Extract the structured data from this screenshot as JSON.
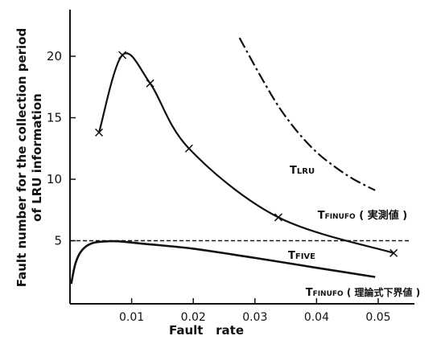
{
  "chart_data": {
    "type": "line",
    "xlabel": "Fault   rate",
    "ylabel_line1": "Fault number for the collection period",
    "ylabel_line2": "of LRU information",
    "xlim": [
      0,
      0.055
    ],
    "ylim": [
      0,
      23
    ],
    "x_ticks": [
      {
        "value": 0.01,
        "label": "0.01"
      },
      {
        "value": 0.02,
        "label": "0.02"
      },
      {
        "value": 0.03,
        "label": "0.03"
      },
      {
        "value": 0.04,
        "label": "0.04"
      },
      {
        "value": 0.05,
        "label": "0.05"
      }
    ],
    "y_ticks": [
      {
        "value": 5,
        "label": "5"
      },
      {
        "value": 10,
        "label": "10"
      },
      {
        "value": 15,
        "label": "15"
      },
      {
        "value": 20,
        "label": "20"
      }
    ],
    "series": [
      {
        "name": "TLRU",
        "style": "dashdot",
        "markers": false,
        "points": [
          [
            0.0275,
            21.5
          ],
          [
            0.031,
            18.3
          ],
          [
            0.034,
            15.8
          ],
          [
            0.037,
            13.8
          ],
          [
            0.04,
            12.2
          ],
          [
            0.043,
            11.0
          ],
          [
            0.046,
            10.0
          ],
          [
            0.0495,
            9.1
          ]
        ]
      },
      {
        "name": "TFINUFO (実測値)",
        "style": "solid",
        "markers": true,
        "points": [
          [
            0.0047,
            13.8
          ],
          [
            0.0085,
            20.1
          ],
          [
            0.013,
            17.8
          ],
          [
            0.0193,
            12.5
          ],
          [
            0.0338,
            6.9
          ],
          [
            0.0525,
            4.0
          ]
        ]
      },
      {
        "name": "TFIVE",
        "style": "dashed",
        "markers": false,
        "points": [
          [
            0.0,
            5.0
          ],
          [
            0.055,
            5.0
          ]
        ]
      },
      {
        "name": "TFINUFO (理論式下界値)",
        "style": "solid",
        "markers": false,
        "points": [
          [
            0.0002,
            1.5
          ],
          [
            0.0008,
            3.0
          ],
          [
            0.0015,
            3.9
          ],
          [
            0.0025,
            4.5
          ],
          [
            0.004,
            4.85
          ],
          [
            0.006,
            4.95
          ],
          [
            0.008,
            4.95
          ],
          [
            0.012,
            4.75
          ],
          [
            0.02,
            4.35
          ],
          [
            0.03,
            3.6
          ],
          [
            0.04,
            2.8
          ],
          [
            0.0495,
            2.05
          ]
        ]
      }
    ],
    "annotations": [
      {
        "id": "tlru",
        "main": "T",
        "sub": "LRU",
        "suffix": ""
      },
      {
        "id": "tfinufo-measured",
        "main": "T",
        "sub": "FINUFO",
        "suffix": " ( 実測値 )"
      },
      {
        "id": "tfive",
        "main": "T",
        "sub": "FIVE",
        "suffix": ""
      },
      {
        "id": "tfinufo-theory",
        "main": "T",
        "sub": "FINUFO",
        "suffix": " ( 理論式下界値 )"
      }
    ]
  }
}
